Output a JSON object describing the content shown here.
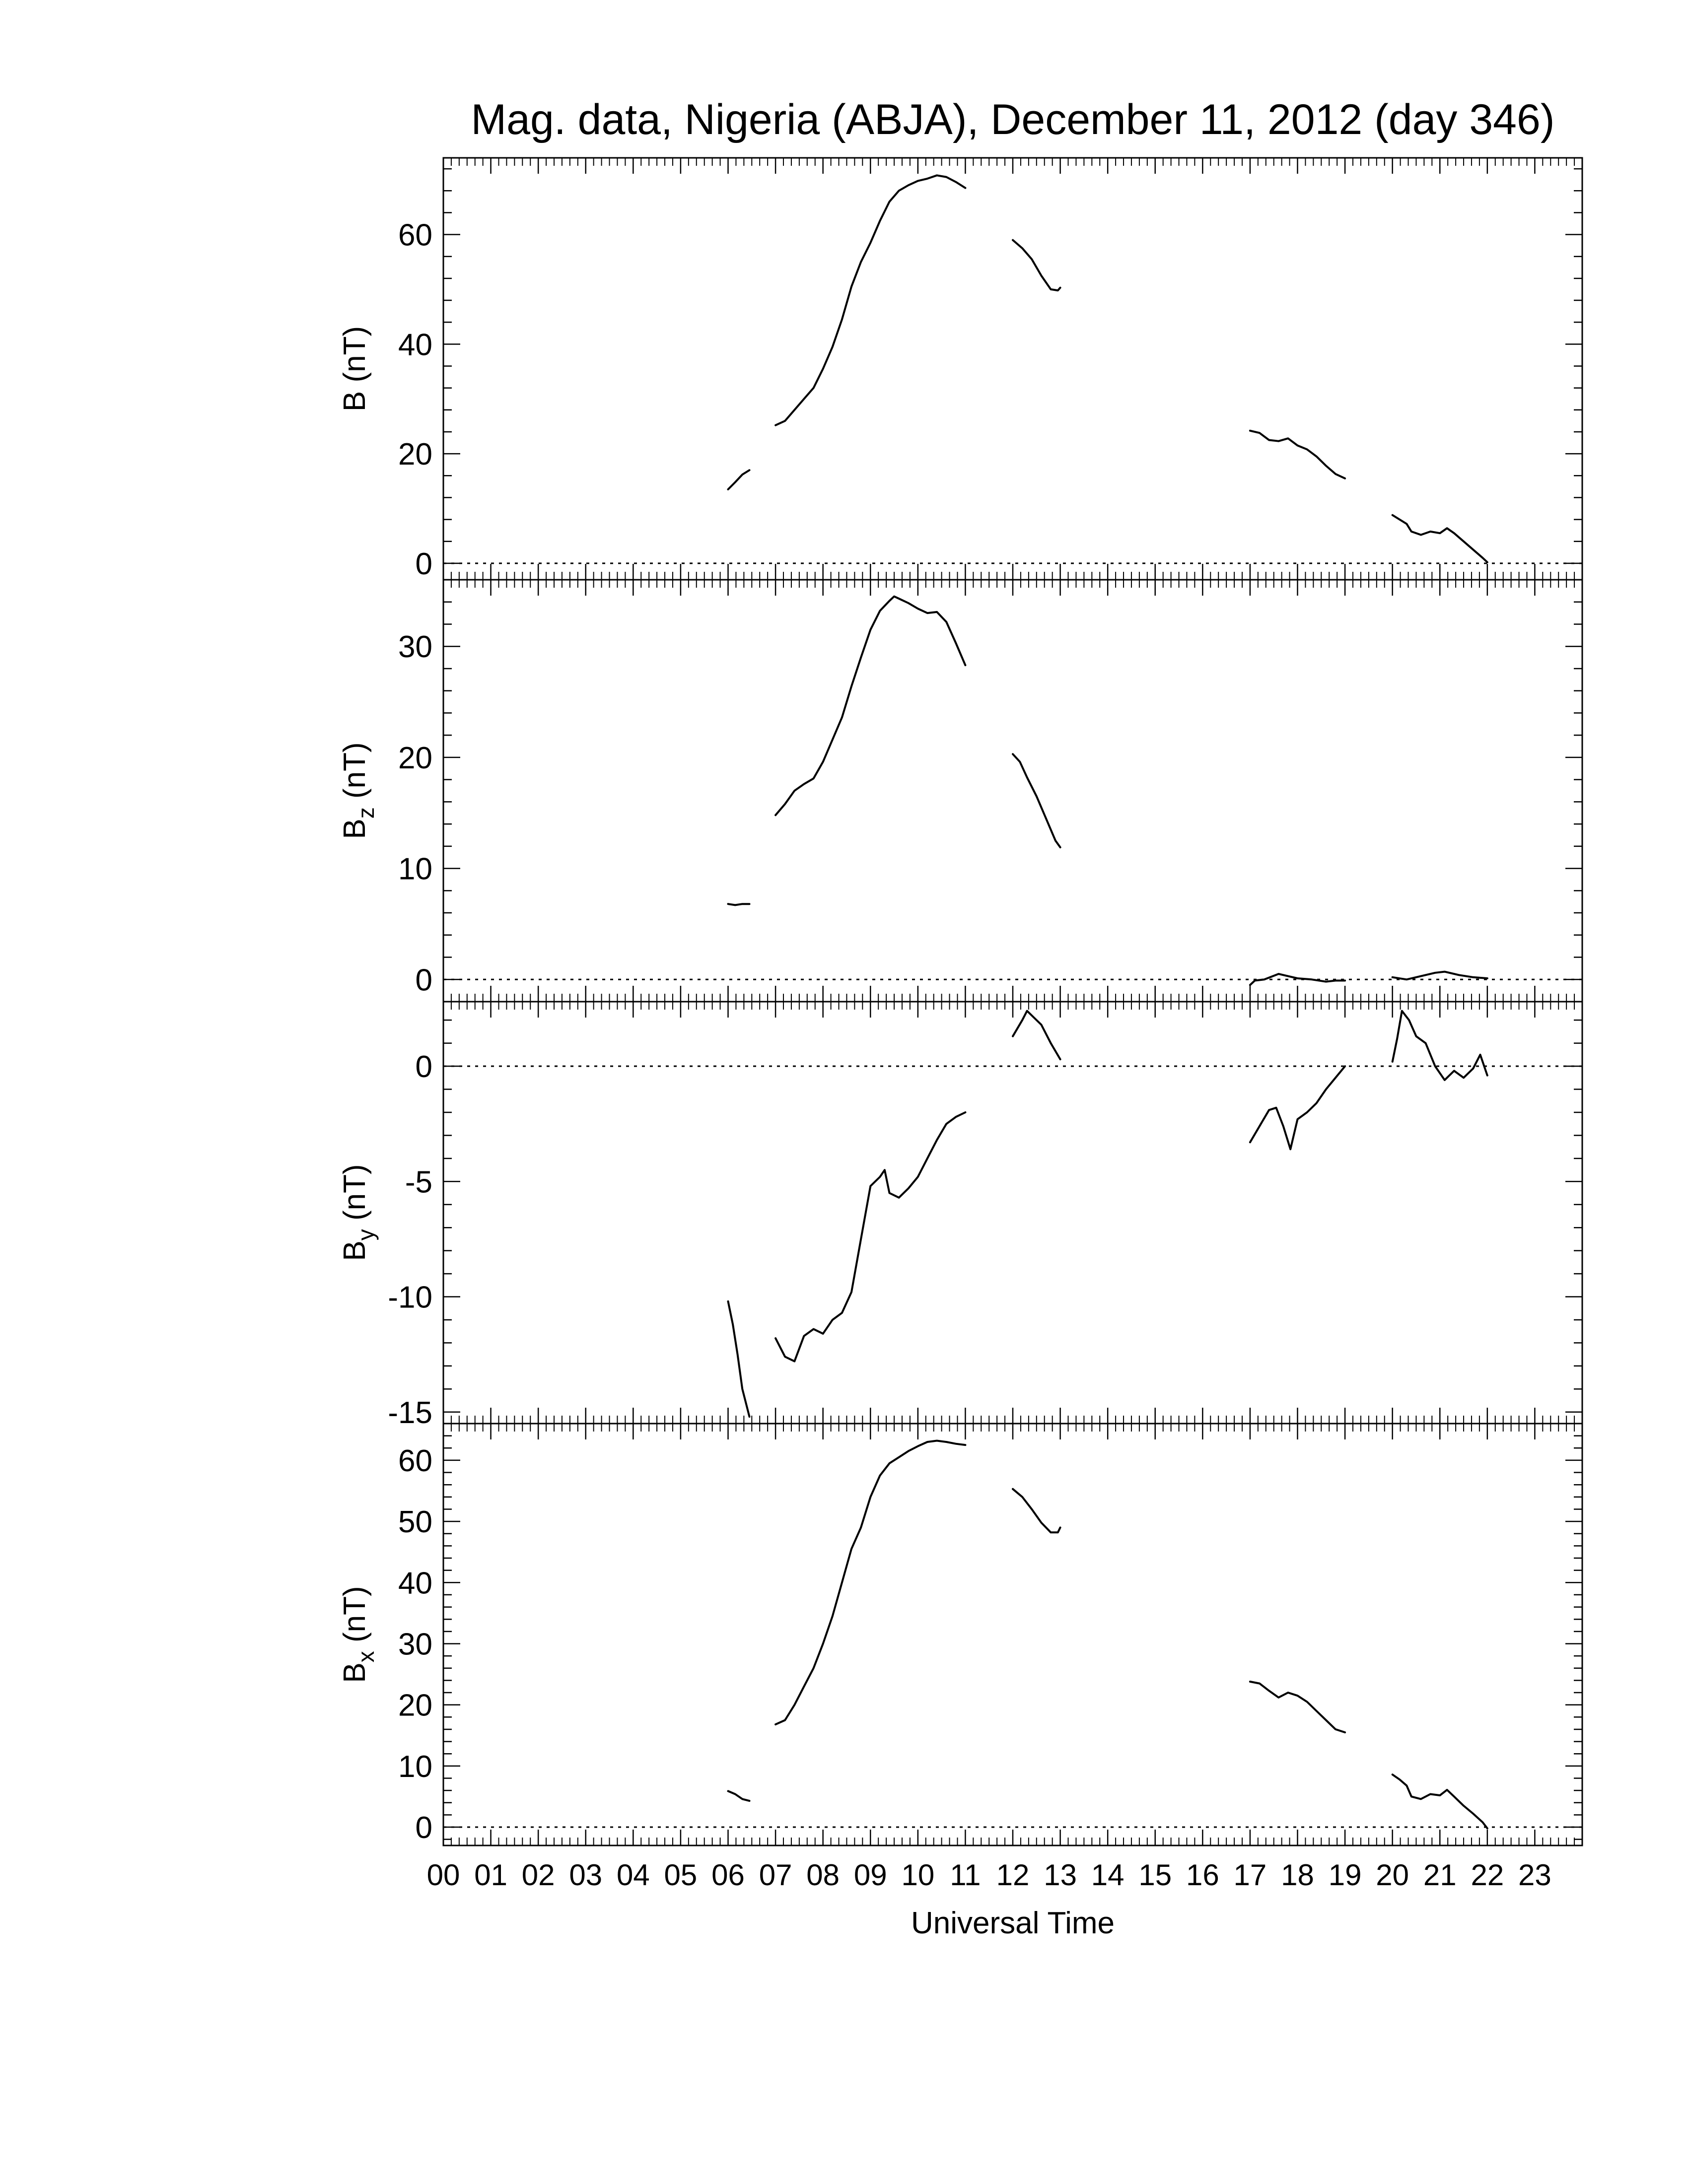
{
  "chart_data": {
    "type": "line",
    "title": "Mag. data, Nigeria (ABJA), December 11, 2012 (day 346)",
    "xlabel": "Universal Time",
    "x_range": [
      0,
      24
    ],
    "x_tick_labels": [
      "00",
      "01",
      "02",
      "03",
      "04",
      "05",
      "06",
      "07",
      "08",
      "09",
      "10",
      "11",
      "12",
      "13",
      "14",
      "15",
      "16",
      "17",
      "18",
      "19",
      "20",
      "21",
      "22",
      "23"
    ],
    "colors": {
      "line": "#000000",
      "frame": "#000000",
      "zero_line": "#000000"
    },
    "panels": [
      {
        "id": "B",
        "ylabel_main": "B (nT)",
        "ylabel_sub": "",
        "ylim": [
          -3,
          74
        ],
        "yticks": [
          0,
          20,
          40,
          60
        ],
        "ytick_labels": [
          "0",
          "20",
          "40",
          "60"
        ],
        "zero_line": true,
        "segments": [
          [
            [
              6.0,
              13.5
            ],
            [
              6.15,
              14.8
            ],
            [
              6.3,
              16.2
            ],
            [
              6.45,
              17.0
            ]
          ],
          [
            [
              7.0,
              25.2
            ],
            [
              7.2,
              26.0
            ],
            [
              7.4,
              28.0
            ],
            [
              7.6,
              30.0
            ],
            [
              7.8,
              32.0
            ],
            [
              8.0,
              35.5
            ],
            [
              8.2,
              39.5
            ],
            [
              8.4,
              44.5
            ],
            [
              8.6,
              50.5
            ],
            [
              8.8,
              55.0
            ],
            [
              9.0,
              58.5
            ],
            [
              9.2,
              62.5
            ],
            [
              9.4,
              66.0
            ],
            [
              9.6,
              68.0
            ],
            [
              9.8,
              69.0
            ],
            [
              10.0,
              69.8
            ],
            [
              10.2,
              70.2
            ],
            [
              10.4,
              70.8
            ],
            [
              10.6,
              70.5
            ],
            [
              10.8,
              69.6
            ],
            [
              11.0,
              68.5
            ]
          ],
          [
            [
              12.0,
              59.0
            ],
            [
              12.2,
              57.5
            ],
            [
              12.4,
              55.5
            ],
            [
              12.6,
              52.5
            ],
            [
              12.8,
              50.0
            ],
            [
              12.95,
              49.8
            ],
            [
              13.0,
              50.3
            ]
          ],
          [
            [
              17.0,
              24.2
            ],
            [
              17.2,
              23.8
            ],
            [
              17.4,
              22.5
            ],
            [
              17.6,
              22.3
            ],
            [
              17.8,
              22.8
            ],
            [
              18.0,
              21.5
            ],
            [
              18.2,
              20.8
            ],
            [
              18.4,
              19.5
            ],
            [
              18.6,
              17.8
            ],
            [
              18.8,
              16.3
            ],
            [
              19.0,
              15.5
            ]
          ],
          [
            [
              20.0,
              8.8
            ],
            [
              20.15,
              8.0
            ],
            [
              20.3,
              7.2
            ],
            [
              20.4,
              5.8
            ],
            [
              20.6,
              5.2
            ],
            [
              20.8,
              5.8
            ],
            [
              21.0,
              5.5
            ],
            [
              21.15,
              6.4
            ],
            [
              21.3,
              5.5
            ],
            [
              21.5,
              4.0
            ],
            [
              21.7,
              2.5
            ],
            [
              21.9,
              1.0
            ],
            [
              22.0,
              0.2
            ]
          ]
        ]
      },
      {
        "id": "Bz",
        "ylabel_main": "B",
        "ylabel_sub": "z",
        "ylabel_unit": " (nT)",
        "ylim": [
          -2,
          36
        ],
        "yticks": [
          0,
          10,
          20,
          30
        ],
        "ytick_labels": [
          "0",
          "10",
          "20",
          "30"
        ],
        "zero_line": true,
        "segments": [
          [
            [
              6.0,
              6.8
            ],
            [
              6.15,
              6.7
            ],
            [
              6.3,
              6.8
            ],
            [
              6.45,
              6.8
            ]
          ],
          [
            [
              7.0,
              14.8
            ],
            [
              7.2,
              15.8
            ],
            [
              7.4,
              17.0
            ],
            [
              7.6,
              17.6
            ],
            [
              7.8,
              18.1
            ],
            [
              8.0,
              19.6
            ],
            [
              8.2,
              21.6
            ],
            [
              8.4,
              23.6
            ],
            [
              8.6,
              26.4
            ],
            [
              8.8,
              29.0
            ],
            [
              9.0,
              31.5
            ],
            [
              9.2,
              33.2
            ],
            [
              9.4,
              34.1
            ],
            [
              9.5,
              34.5
            ],
            [
              9.6,
              34.3
            ],
            [
              9.8,
              33.9
            ],
            [
              10.0,
              33.4
            ],
            [
              10.2,
              33.0
            ],
            [
              10.4,
              33.1
            ],
            [
              10.6,
              32.2
            ],
            [
              10.8,
              30.3
            ],
            [
              11.0,
              28.3
            ]
          ],
          [
            [
              12.0,
              20.3
            ],
            [
              12.15,
              19.6
            ],
            [
              12.3,
              18.2
            ],
            [
              12.5,
              16.5
            ],
            [
              12.7,
              14.5
            ],
            [
              12.9,
              12.5
            ],
            [
              13.0,
              11.9
            ]
          ],
          [
            [
              17.0,
              -0.5
            ],
            [
              17.1,
              -0.1
            ],
            [
              17.3,
              0.0
            ],
            [
              17.6,
              0.5
            ],
            [
              17.8,
              0.3
            ],
            [
              18.0,
              0.1
            ],
            [
              18.3,
              0.0
            ],
            [
              18.6,
              -0.2
            ],
            [
              18.8,
              -0.1
            ],
            [
              19.0,
              -0.1
            ]
          ],
          [
            [
              20.0,
              0.2
            ],
            [
              20.3,
              0.0
            ],
            [
              20.6,
              0.3
            ],
            [
              20.9,
              0.6
            ],
            [
              21.1,
              0.7
            ],
            [
              21.4,
              0.4
            ],
            [
              21.7,
              0.2
            ],
            [
              22.0,
              0.1
            ]
          ]
        ]
      },
      {
        "id": "By",
        "ylabel_main": "B",
        "ylabel_sub": "y",
        "ylabel_unit": " (nT)",
        "ylim": [
          -15.5,
          2.8
        ],
        "yticks": [
          -15,
          -10,
          -5,
          0
        ],
        "ytick_labels": [
          "-15",
          "-10",
          "-5",
          "0"
        ],
        "zero_line": true,
        "segments": [
          [
            [
              6.0,
              -10.2
            ],
            [
              6.1,
              -11.2
            ],
            [
              6.2,
              -12.5
            ],
            [
              6.3,
              -14.0
            ],
            [
              6.45,
              -15.2
            ]
          ],
          [
            [
              7.0,
              -11.8
            ],
            [
              7.2,
              -12.6
            ],
            [
              7.4,
              -12.8
            ],
            [
              7.6,
              -11.7
            ],
            [
              7.8,
              -11.4
            ],
            [
              8.0,
              -11.6
            ],
            [
              8.2,
              -11.0
            ],
            [
              8.4,
              -10.7
            ],
            [
              8.6,
              -9.8
            ],
            [
              8.8,
              -7.5
            ],
            [
              9.0,
              -5.2
            ],
            [
              9.2,
              -4.8
            ],
            [
              9.3,
              -4.5
            ],
            [
              9.4,
              -5.5
            ],
            [
              9.6,
              -5.7
            ],
            [
              9.8,
              -5.3
            ],
            [
              10.0,
              -4.8
            ],
            [
              10.2,
              -4.0
            ],
            [
              10.4,
              -3.2
            ],
            [
              10.6,
              -2.5
            ],
            [
              10.8,
              -2.2
            ],
            [
              11.0,
              -2.0
            ]
          ],
          [
            [
              12.0,
              1.3
            ],
            [
              12.2,
              2.0
            ],
            [
              12.3,
              2.4
            ],
            [
              12.45,
              2.1
            ],
            [
              12.6,
              1.8
            ],
            [
              12.8,
              1.0
            ],
            [
              13.0,
              0.3
            ]
          ],
          [
            [
              17.0,
              -3.3
            ],
            [
              17.2,
              -2.6
            ],
            [
              17.4,
              -1.9
            ],
            [
              17.55,
              -1.8
            ],
            [
              17.7,
              -2.6
            ],
            [
              17.85,
              -3.6
            ],
            [
              18.0,
              -2.3
            ],
            [
              18.2,
              -2.0
            ],
            [
              18.4,
              -1.6
            ],
            [
              18.6,
              -1.0
            ],
            [
              18.8,
              -0.5
            ],
            [
              19.0,
              0.0
            ]
          ],
          [
            [
              20.0,
              0.2
            ],
            [
              20.1,
              1.2
            ],
            [
              20.2,
              2.4
            ],
            [
              20.35,
              2.0
            ],
            [
              20.5,
              1.3
            ],
            [
              20.7,
              1.0
            ],
            [
              20.9,
              0.0
            ],
            [
              21.1,
              -0.6
            ],
            [
              21.3,
              -0.2
            ],
            [
              21.5,
              -0.5
            ],
            [
              21.7,
              -0.1
            ],
            [
              21.85,
              0.5
            ],
            [
              22.0,
              -0.4
            ]
          ]
        ]
      },
      {
        "id": "Bx",
        "ylabel_main": "B",
        "ylabel_sub": "x",
        "ylabel_unit": " (nT)",
        "ylim": [
          -3,
          66
        ],
        "yticks": [
          0,
          10,
          20,
          30,
          40,
          50,
          60
        ],
        "ytick_labels": [
          "0",
          "10",
          "20",
          "30",
          "40",
          "50",
          "60"
        ],
        "zero_line": true,
        "segments": [
          [
            [
              6.0,
              5.9
            ],
            [
              6.15,
              5.4
            ],
            [
              6.3,
              4.6
            ],
            [
              6.45,
              4.3
            ]
          ],
          [
            [
              7.0,
              16.8
            ],
            [
              7.2,
              17.5
            ],
            [
              7.4,
              20.0
            ],
            [
              7.6,
              23.0
            ],
            [
              7.8,
              26.0
            ],
            [
              8.0,
              30.0
            ],
            [
              8.2,
              34.5
            ],
            [
              8.4,
              40.0
            ],
            [
              8.6,
              45.5
            ],
            [
              8.8,
              49.0
            ],
            [
              9.0,
              54.0
            ],
            [
              9.2,
              57.5
            ],
            [
              9.4,
              59.5
            ],
            [
              9.6,
              60.5
            ],
            [
              9.8,
              61.5
            ],
            [
              10.0,
              62.3
            ],
            [
              10.2,
              63.0
            ],
            [
              10.4,
              63.2
            ],
            [
              10.6,
              63.0
            ],
            [
              10.8,
              62.7
            ],
            [
              11.0,
              62.5
            ]
          ],
          [
            [
              12.0,
              55.3
            ],
            [
              12.2,
              54.0
            ],
            [
              12.4,
              52.0
            ],
            [
              12.6,
              49.8
            ],
            [
              12.8,
              48.2
            ],
            [
              12.95,
              48.2
            ],
            [
              13.0,
              49.0
            ]
          ],
          [
            [
              17.0,
              23.8
            ],
            [
              17.2,
              23.5
            ],
            [
              17.4,
              22.3
            ],
            [
              17.6,
              21.2
            ],
            [
              17.8,
              22.0
            ],
            [
              18.0,
              21.5
            ],
            [
              18.2,
              20.5
            ],
            [
              18.4,
              19.0
            ],
            [
              18.6,
              17.5
            ],
            [
              18.8,
              16.0
            ],
            [
              19.0,
              15.5
            ]
          ],
          [
            [
              20.0,
              8.6
            ],
            [
              20.15,
              7.8
            ],
            [
              20.3,
              6.8
            ],
            [
              20.4,
              5.0
            ],
            [
              20.6,
              4.6
            ],
            [
              20.8,
              5.4
            ],
            [
              21.0,
              5.2
            ],
            [
              21.15,
              6.1
            ],
            [
              21.3,
              5.0
            ],
            [
              21.5,
              3.5
            ],
            [
              21.7,
              2.2
            ],
            [
              21.9,
              0.8
            ],
            [
              22.0,
              -0.2
            ]
          ]
        ]
      }
    ]
  }
}
